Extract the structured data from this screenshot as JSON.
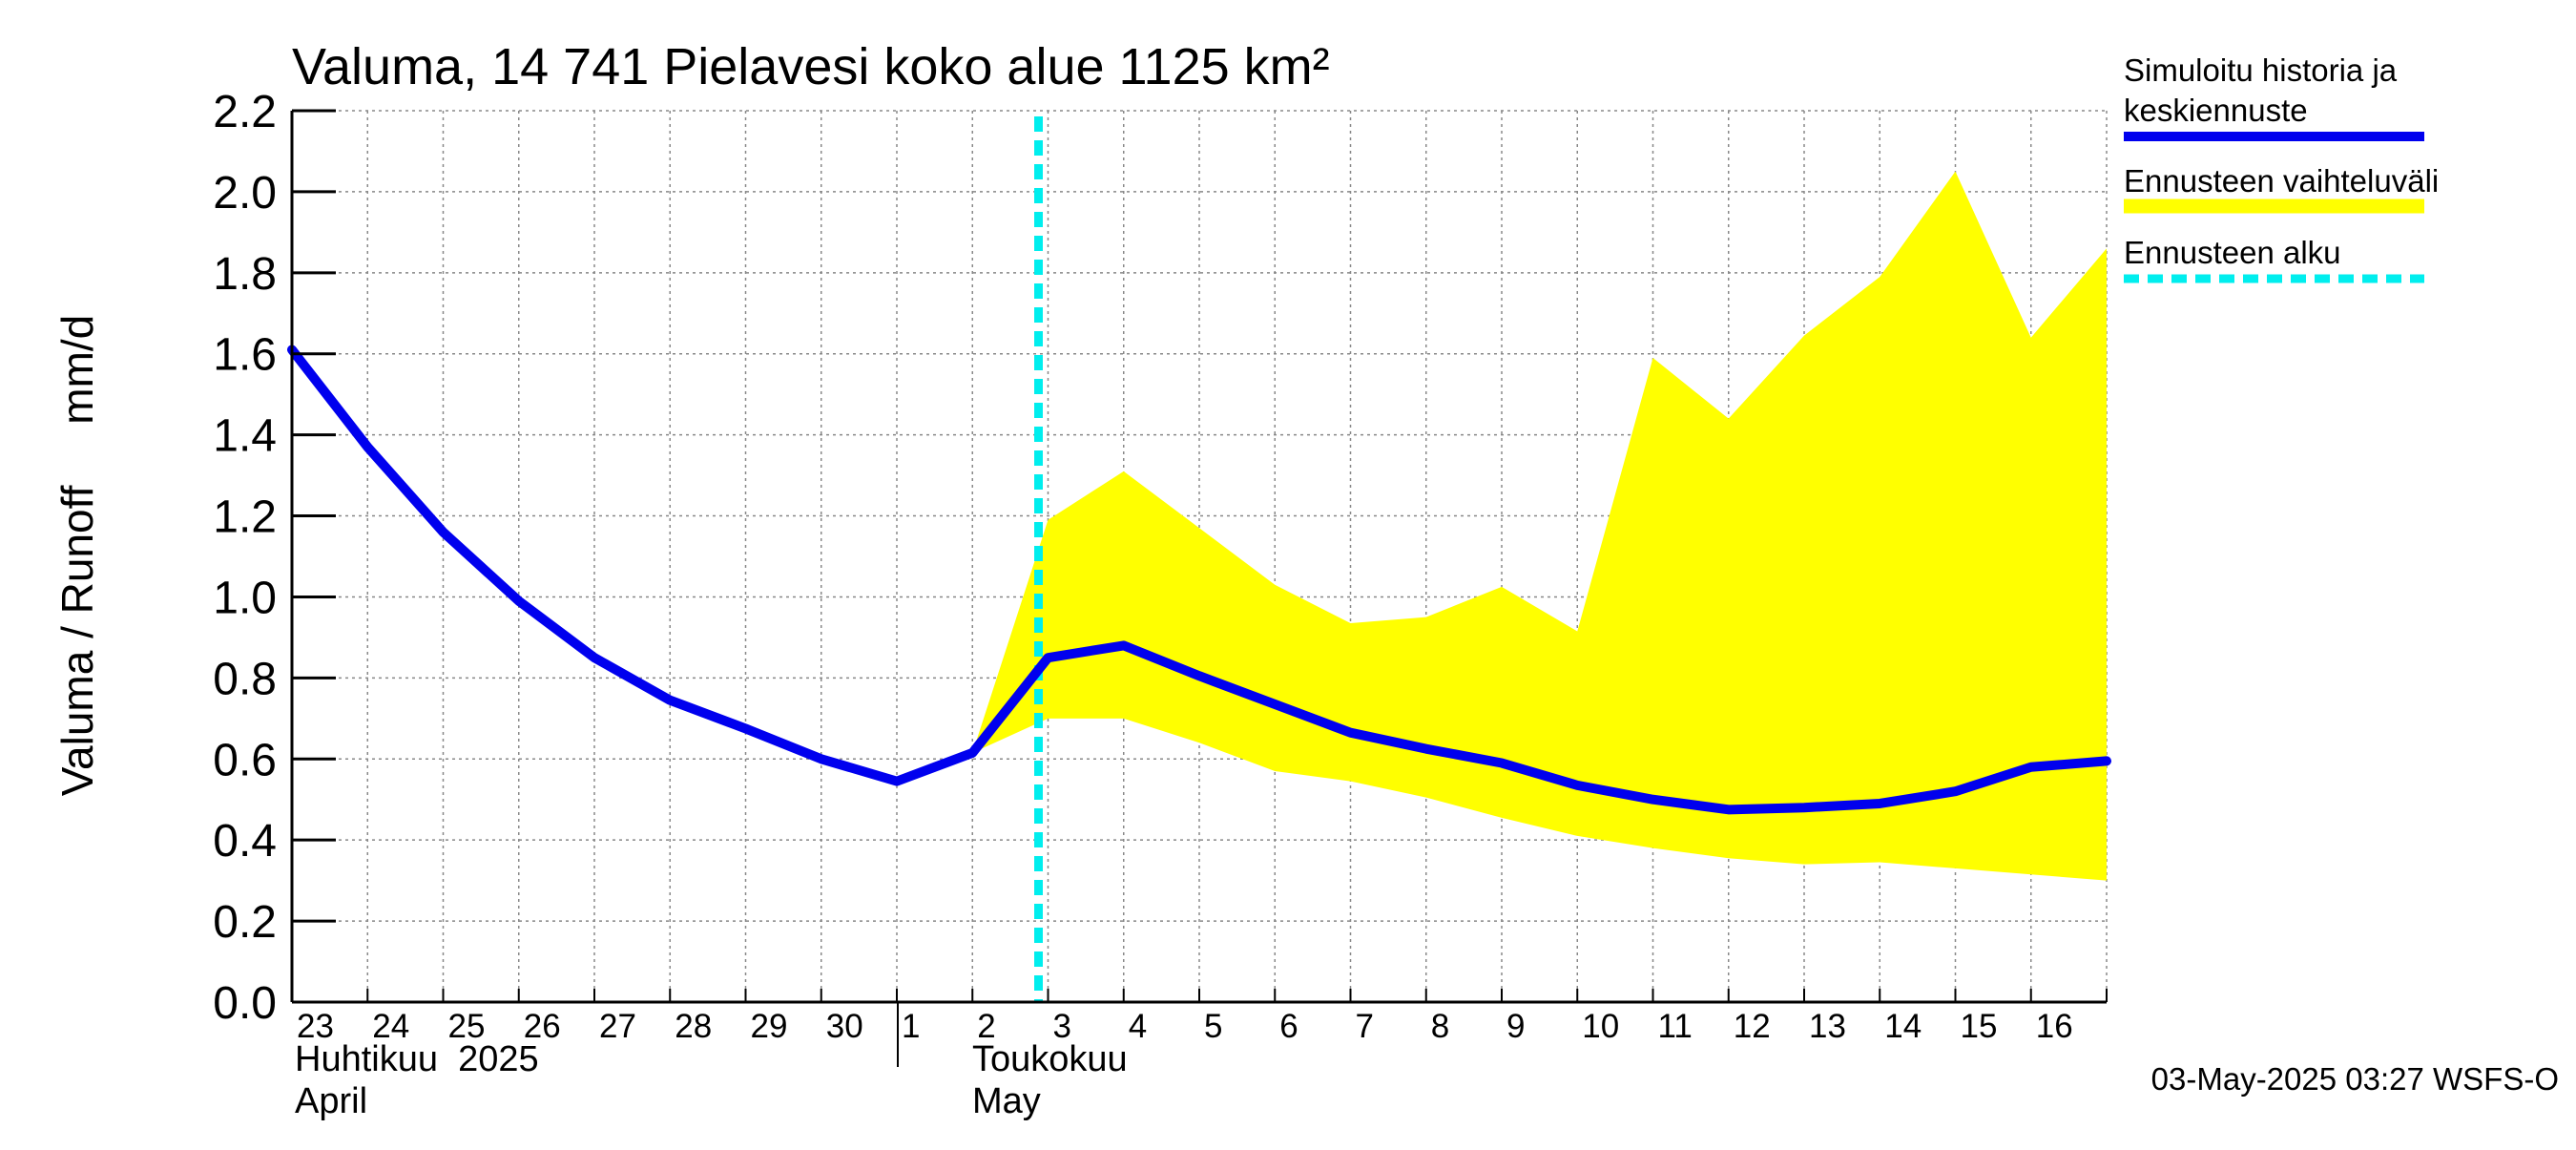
{
  "chart_data": {
    "type": "line",
    "title": "Valuma, 14 741 Pielavesi koko alue 1125 km²",
    "ylabel": "Valuma / Runoff     mm/d",
    "ylim": [
      0,
      2.2
    ],
    "y_ticks": [
      "0.0",
      "0.2",
      "0.4",
      "0.6",
      "0.8",
      "1.0",
      "1.2",
      "1.4",
      "1.6",
      "1.8",
      "2.0",
      "2.2"
    ],
    "x_ticks": [
      "23",
      "24",
      "25",
      "26",
      "27",
      "28",
      "29",
      "30",
      "1",
      "2",
      "3",
      "4",
      "5",
      "6",
      "7",
      "8",
      "9",
      "10",
      "11",
      "12",
      "13",
      "14",
      "15",
      "16"
    ],
    "x_dates": [
      "2025-04-23",
      "2025-04-24",
      "2025-04-25",
      "2025-04-26",
      "2025-04-27",
      "2025-04-28",
      "2025-04-29",
      "2025-04-30",
      "2025-05-01",
      "2025-05-02",
      "2025-05-03",
      "2025-05-04",
      "2025-05-05",
      "2025-05-06",
      "2025-05-07",
      "2025-05-08",
      "2025-05-09",
      "2025-05-10",
      "2025-05-11",
      "2025-05-12",
      "2025-05-13",
      "2025-05-14",
      "2025-05-15",
      "2025-05-16",
      "2025-05-17"
    ],
    "month_labels": [
      {
        "fi": "Huhtikuu  2025",
        "en": "April"
      },
      {
        "fi": "Toukokuu",
        "en": "May"
      }
    ],
    "grid": true,
    "legend_position": "right",
    "series": [
      {
        "name": "Simuloitu historia ja keskiennuste",
        "color": "#0000ee",
        "x": [
          "2025-04-23",
          "2025-04-24",
          "2025-04-25",
          "2025-04-26",
          "2025-04-27",
          "2025-04-28",
          "2025-04-29",
          "2025-04-30",
          "2025-05-01",
          "2025-05-02",
          "2025-05-03",
          "2025-05-04",
          "2025-05-05",
          "2025-05-06",
          "2025-05-07",
          "2025-05-08",
          "2025-05-09",
          "2025-05-10",
          "2025-05-11",
          "2025-05-12",
          "2025-05-13",
          "2025-05-14",
          "2025-05-15",
          "2025-05-16",
          "2025-05-17"
        ],
        "values": [
          1.61,
          1.37,
          1.16,
          0.99,
          0.85,
          0.745,
          0.675,
          0.6,
          0.545,
          0.615,
          0.85,
          0.88,
          0.805,
          0.735,
          0.665,
          0.625,
          0.59,
          0.535,
          0.5,
          0.475,
          0.48,
          0.49,
          0.52,
          0.58,
          0.595
        ]
      },
      {
        "name": "Ennusteen vaihteluväli",
        "color": "#ffff00",
        "x": [
          "2025-05-02",
          "2025-05-03",
          "2025-05-04",
          "2025-05-05",
          "2025-05-06",
          "2025-05-07",
          "2025-05-08",
          "2025-05-09",
          "2025-05-10",
          "2025-05-11",
          "2025-05-12",
          "2025-05-13",
          "2025-05-14",
          "2025-05-15",
          "2025-05-16",
          "2025-05-17"
        ],
        "upper": [
          0.615,
          1.19,
          1.31,
          1.17,
          1.03,
          0.935,
          0.95,
          1.025,
          0.915,
          1.59,
          1.44,
          1.645,
          1.79,
          2.05,
          1.64,
          1.86
        ],
        "lower": [
          0.615,
          0.7,
          0.7,
          0.64,
          0.57,
          0.545,
          0.505,
          0.455,
          0.41,
          0.38,
          0.355,
          0.34,
          0.345,
          0.33,
          0.315,
          0.3
        ]
      },
      {
        "name": "Ennusteen alku",
        "color": "#00eeee",
        "x": [
          "2025-05-03"
        ]
      }
    ],
    "timestamp": "03-May-2025 03:27 WSFS-O"
  }
}
